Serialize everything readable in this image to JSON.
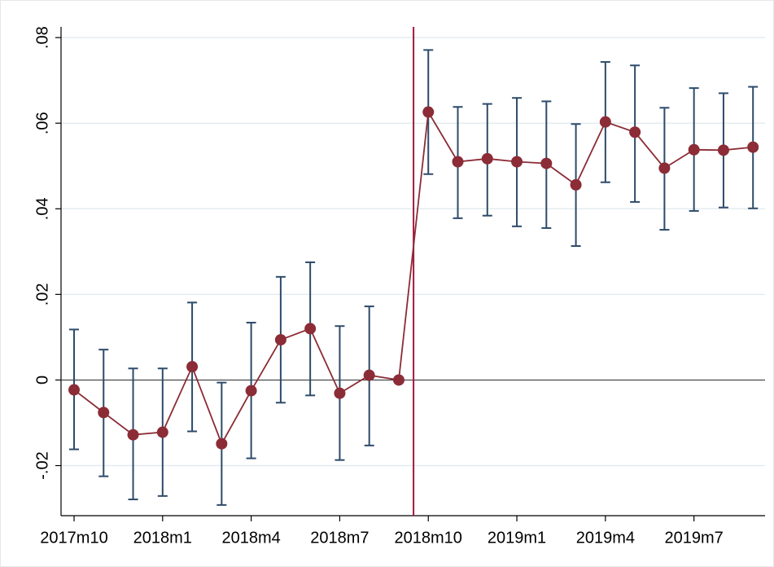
{
  "chart_data": {
    "type": "errorbar-line",
    "categories": [
      "2017m10",
      null,
      null,
      "2018m1",
      null,
      null,
      "2018m4",
      null,
      null,
      "2018m7",
      null,
      null,
      "2018m10",
      null,
      null,
      "2019m1",
      null,
      null,
      "2019m4",
      null,
      null,
      "2019m7",
      null,
      null
    ],
    "values": [
      -0.0023,
      -0.0076,
      -0.0128,
      -0.0122,
      0.0031,
      -0.0149,
      -0.0025,
      0.0094,
      0.012,
      -0.0031,
      0.0011,
      0,
      0.0626,
      0.051,
      0.0517,
      0.051,
      0.0506,
      0.0456,
      0.0603,
      0.0579,
      0.0495,
      0.0538,
      0.0537,
      0.0544
    ],
    "lower": [
      -0.0162,
      -0.0225,
      -0.0279,
      -0.0271,
      -0.012,
      -0.0292,
      -0.0183,
      -0.0053,
      -0.0036,
      -0.0187,
      -0.0153,
      null,
      0.0481,
      0.0378,
      0.0384,
      0.0359,
      0.0355,
      0.0313,
      0.0462,
      0.0416,
      0.0351,
      0.0395,
      0.0403,
      0.0401
    ],
    "upper": [
      0.0118,
      0.0071,
      0.0027,
      0.0027,
      0.0181,
      -0.0006,
      0.0134,
      0.0241,
      0.0275,
      0.0126,
      0.0172,
      null,
      0.0771,
      0.0638,
      0.0645,
      0.0659,
      0.0651,
      0.0598,
      0.0743,
      0.0735,
      0.0636,
      0.0682,
      0.067,
      0.0685
    ],
    "color": "#8b2c36",
    "errorbar_color": "#2d4a6a",
    "vline_color": "#a3173f",
    "ylim": [
      -0.0317,
      0.0825
    ],
    "yticks": [
      {
        "value": -0.02,
        "label": "-.02"
      },
      0,
      {
        "value": 0.02,
        "label": ".02"
      },
      {
        "value": 0.04,
        "label": ".04"
      },
      {
        "value": 0.06,
        "label": ".06"
      },
      {
        "value": 0.08,
        "label": ".08"
      }
    ],
    "hline": 0,
    "grid": true
  }
}
